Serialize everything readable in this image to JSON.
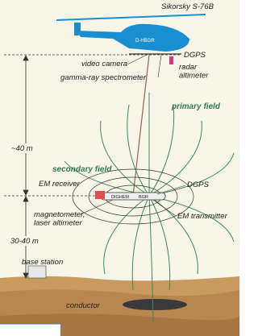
{
  "diagram": {
    "labels": {
      "aircraft": "Sikorsky S-76B",
      "registration": "D-HBGR",
      "dgps_top": "DGPS",
      "video_camera": "video camera",
      "radar_altimeter": "radar\naltimeter",
      "gamma": "gamma-ray spectrometer",
      "height_upper": "~40 m",
      "primary_field": "primary field",
      "secondary_field": "secondary field",
      "em_receiver": "EM receiver",
      "bird_left": "DIGHEM",
      "bird_right": "BGR",
      "dgps_bird": "DGPS",
      "magnetometer": "magnetometer,\nlaser altimeter",
      "em_transmitter": "EM transmitter",
      "height_lower": "30-40 m",
      "base_station": "base station",
      "conductor": "conductor"
    }
  }
}
